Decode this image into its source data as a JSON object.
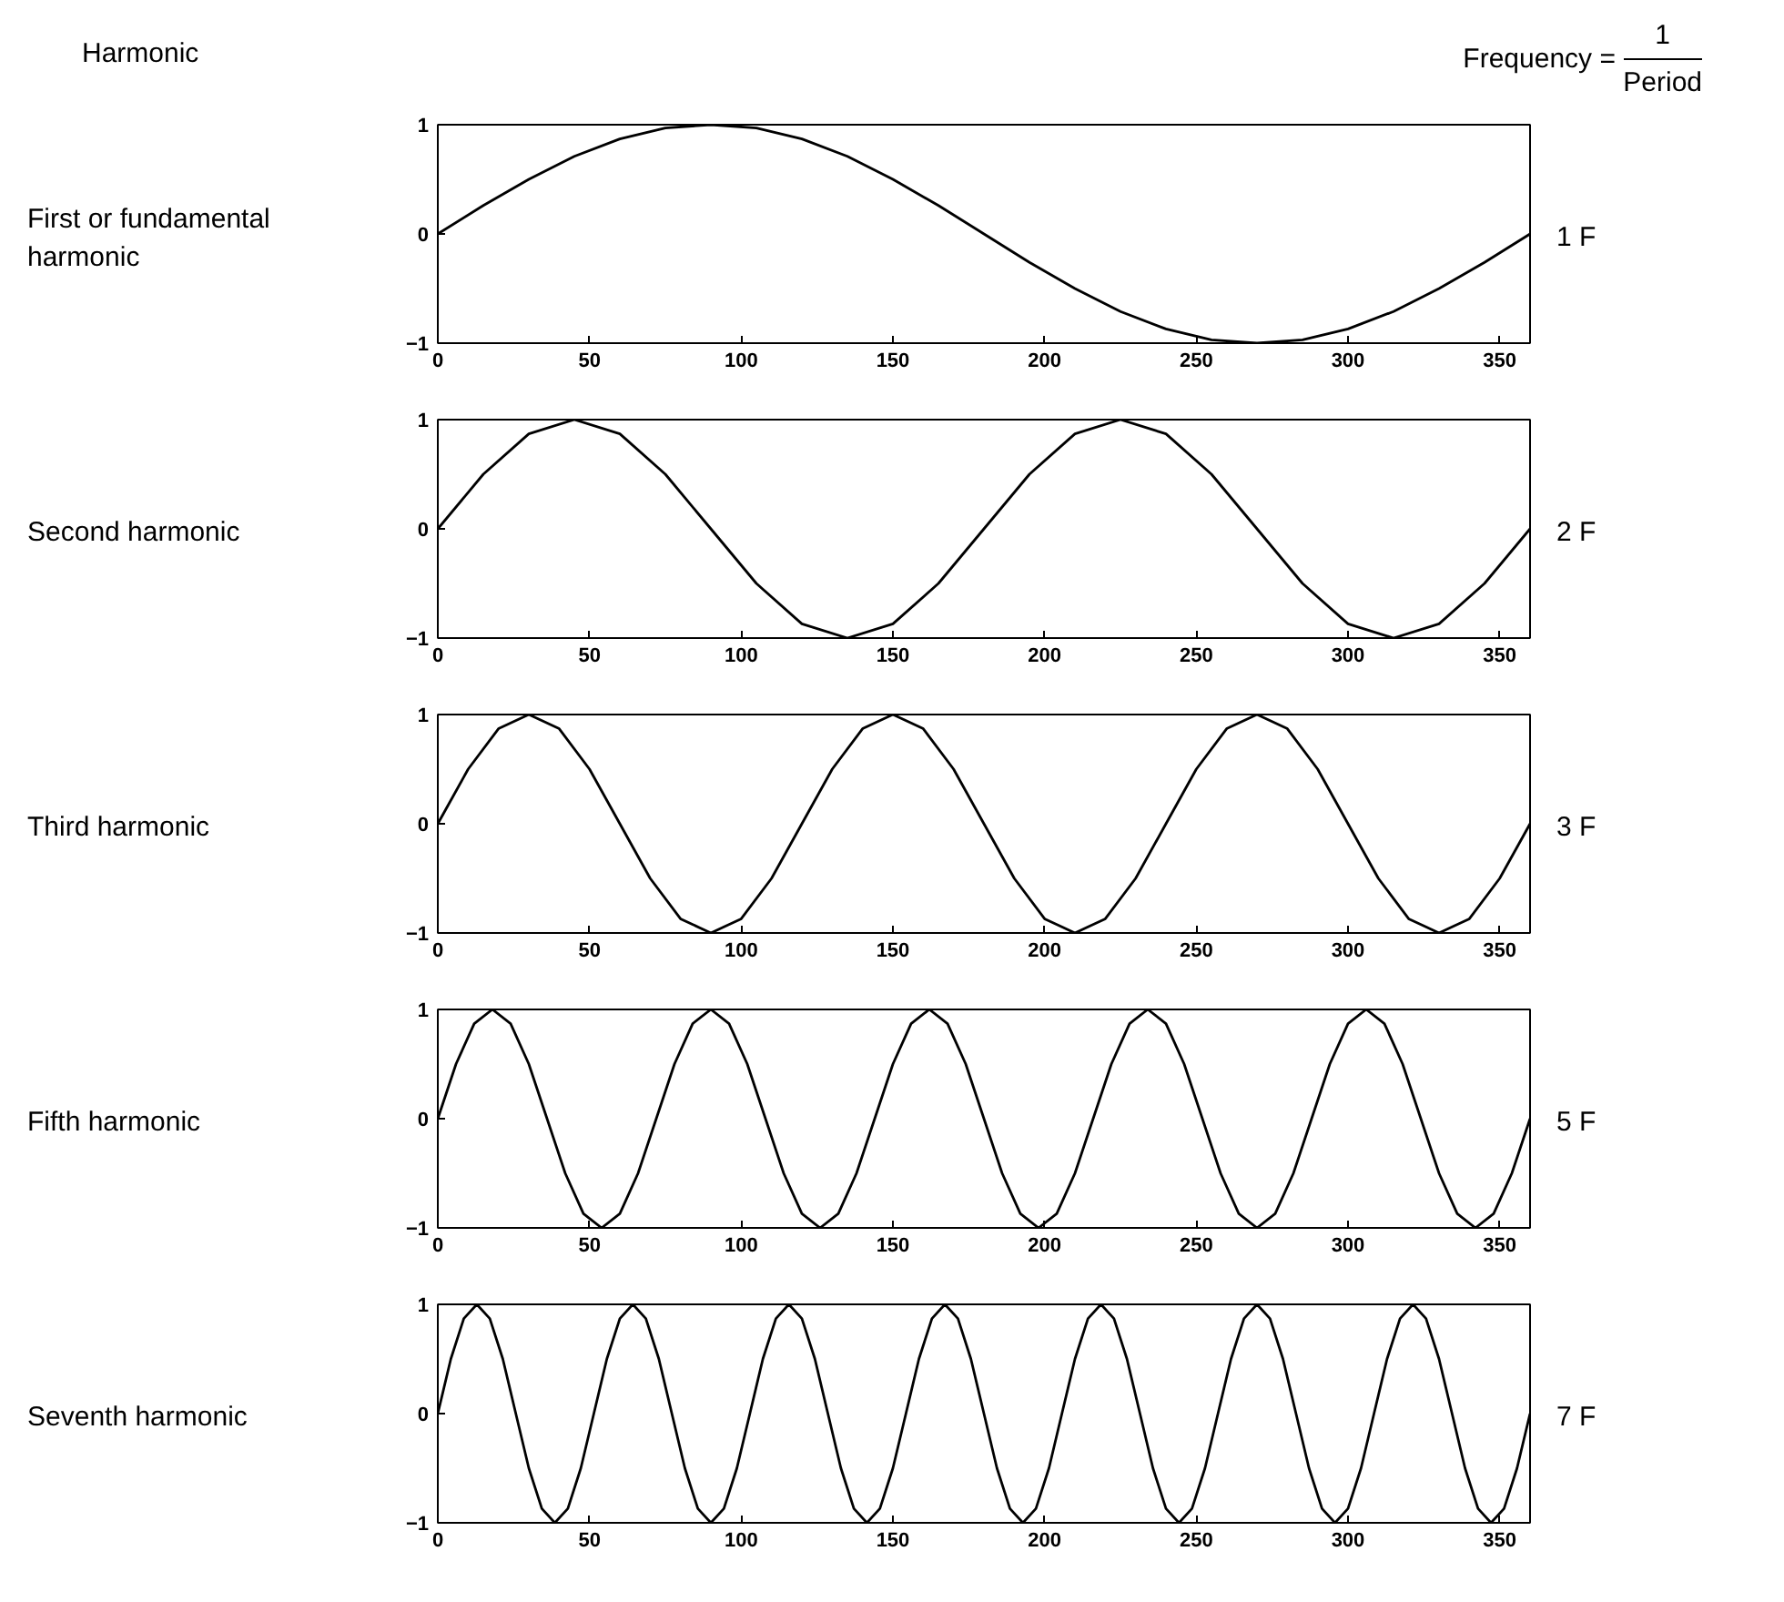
{
  "chart_data": [
    {
      "type": "line",
      "ylabel": "First or fundamental harmonic",
      "y2label": "1 F",
      "annotations": [
        "Harmonic",
        "Frequency =",
        "1",
        "Period"
      ],
      "xlim": [
        0,
        360
      ],
      "ylim": [
        -1,
        1
      ],
      "xticks": [
        0,
        50,
        100,
        150,
        200,
        250,
        300,
        350
      ],
      "yticks": [
        -1,
        0,
        1
      ],
      "grid": false,
      "series": [
        {
          "color": "#000000",
          "x": [
            0,
            15,
            30,
            45,
            60,
            75,
            90,
            105,
            120,
            135,
            150,
            165,
            180,
            195,
            210,
            225,
            240,
            255,
            270,
            285,
            300,
            315,
            330,
            345,
            360
          ],
          "values": [
            0,
            0.26,
            0.5,
            0.71,
            0.87,
            0.97,
            1,
            0.97,
            0.87,
            0.71,
            0.5,
            0.26,
            0,
            -0.26,
            -0.5,
            -0.71,
            -0.87,
            -0.97,
            -1,
            -0.97,
            -0.87,
            -0.71,
            -0.5,
            -0.26,
            0
          ]
        }
      ]
    },
    {
      "type": "line",
      "ylabel": "Second harmonic",
      "y2label": "2 F",
      "xlim": [
        0,
        360
      ],
      "ylim": [
        -1,
        1
      ],
      "xticks": [
        0,
        50,
        100,
        150,
        200,
        250,
        300,
        350
      ],
      "yticks": [
        -1,
        0,
        1
      ],
      "grid": false,
      "series": [
        {
          "color": "#000000",
          "x": [
            0,
            15,
            30,
            45,
            60,
            75,
            90,
            105,
            120,
            135,
            150,
            165,
            180,
            195,
            210,
            225,
            240,
            255,
            270,
            285,
            300,
            315,
            330,
            345,
            360
          ],
          "values": [
            0,
            0.5,
            0.87,
            1,
            0.87,
            0.5,
            0,
            -0.5,
            -0.87,
            -1,
            -0.87,
            -0.5,
            0,
            0.5,
            0.87,
            1,
            0.87,
            0.5,
            0,
            -0.5,
            -0.87,
            -1,
            -0.87,
            -0.5,
            0
          ]
        }
      ]
    },
    {
      "type": "line",
      "ylabel": "Third harmonic",
      "y2label": "3 F",
      "xlim": [
        0,
        360
      ],
      "ylim": [
        -1,
        1
      ],
      "xticks": [
        0,
        50,
        100,
        150,
        200,
        250,
        300,
        350
      ],
      "yticks": [
        -1,
        0,
        1
      ],
      "grid": false,
      "series": [
        {
          "color": "#000000",
          "x": [
            0,
            10,
            20,
            30,
            40,
            50,
            60,
            70,
            80,
            90,
            100,
            110,
            120,
            130,
            140,
            150,
            160,
            170,
            180,
            190,
            200,
            210,
            220,
            230,
            240,
            250,
            260,
            270,
            280,
            290,
            300,
            310,
            320,
            330,
            340,
            350,
            360
          ],
          "values": [
            0,
            0.5,
            0.87,
            1,
            0.87,
            0.5,
            0,
            -0.5,
            -0.87,
            -1,
            -0.87,
            -0.5,
            0,
            0.5,
            0.87,
            1,
            0.87,
            0.5,
            0,
            -0.5,
            -0.87,
            -1,
            -0.87,
            -0.5,
            0,
            0.5,
            0.87,
            1,
            0.87,
            0.5,
            0,
            -0.5,
            -0.87,
            -1,
            -0.87,
            -0.5,
            0
          ]
        }
      ]
    },
    {
      "type": "line",
      "ylabel": "Fifth harmonic",
      "y2label": "5 F",
      "xlim": [
        0,
        360
      ],
      "ylim": [
        -1,
        1
      ],
      "xticks": [
        0,
        50,
        100,
        150,
        200,
        250,
        300,
        350
      ],
      "yticks": [
        -1,
        0,
        1
      ],
      "grid": false,
      "series": [
        {
          "color": "#000000",
          "x": [
            0,
            6,
            12,
            18,
            24,
            30,
            36,
            42,
            48,
            54,
            60,
            66,
            72,
            78,
            84,
            90,
            96,
            102,
            108,
            114,
            120,
            126,
            132,
            138,
            144,
            150,
            156,
            162,
            168,
            174,
            180,
            186,
            192,
            198,
            204,
            210,
            216,
            222,
            228,
            234,
            240,
            246,
            252,
            258,
            264,
            270,
            276,
            282,
            288,
            294,
            300,
            306,
            312,
            318,
            324,
            330,
            336,
            342,
            348,
            354,
            360
          ],
          "values": [
            0,
            0.5,
            0.87,
            1,
            0.87,
            0.5,
            0,
            -0.5,
            -0.87,
            -1,
            -0.87,
            -0.5,
            0,
            0.5,
            0.87,
            1,
            0.87,
            0.5,
            0,
            -0.5,
            -0.87,
            -1,
            -0.87,
            -0.5,
            0,
            0.5,
            0.87,
            1,
            0.87,
            0.5,
            0,
            -0.5,
            -0.87,
            -1,
            -0.87,
            -0.5,
            0,
            0.5,
            0.87,
            1,
            0.87,
            0.5,
            0,
            -0.5,
            -0.87,
            -1,
            -0.87,
            -0.5,
            0,
            0.5,
            0.87,
            1,
            0.87,
            0.5,
            0,
            -0.5,
            -0.87,
            -1,
            -0.87,
            -0.5,
            0
          ]
        }
      ]
    },
    {
      "type": "line",
      "ylabel": "Seventh harmonic",
      "y2label": "7 F",
      "xlim": [
        0,
        360
      ],
      "ylim": [
        -1,
        1
      ],
      "xticks": [
        0,
        50,
        100,
        150,
        200,
        250,
        300,
        350
      ],
      "yticks": [
        -1,
        0,
        1
      ],
      "grid": false,
      "series": [
        {
          "color": "#000000",
          "x": [
            0,
            4.29,
            8.57,
            12.86,
            17.14,
            21.43,
            25.71,
            30,
            34.29,
            38.57,
            42.86,
            47.14,
            51.43,
            55.71,
            60,
            64.29,
            68.57,
            72.86,
            77.14,
            81.43,
            85.71,
            90,
            94.29,
            98.57,
            102.86,
            107.14,
            111.43,
            115.71,
            120,
            124.29,
            128.57,
            132.86,
            137.14,
            141.43,
            145.71,
            150,
            154.29,
            158.57,
            162.86,
            167.14,
            171.43,
            175.71,
            180,
            184.29,
            188.57,
            192.86,
            197.14,
            201.43,
            205.71,
            210,
            214.29,
            218.57,
            222.86,
            227.14,
            231.43,
            235.71,
            240,
            244.29,
            248.57,
            252.86,
            257.14,
            261.43,
            265.71,
            270,
            274.29,
            278.57,
            282.86,
            287.14,
            291.43,
            295.71,
            300,
            304.29,
            308.57,
            312.86,
            317.14,
            321.43,
            325.71,
            330,
            334.29,
            338.57,
            342.86,
            347.14,
            351.43,
            355.71,
            360
          ],
          "values": [
            0,
            0.5,
            0.87,
            1,
            0.87,
            0.5,
            0,
            -0.5,
            -0.87,
            -1,
            -0.87,
            -0.5,
            0,
            0.5,
            0.87,
            1,
            0.87,
            0.5,
            0,
            -0.5,
            -0.87,
            -1,
            -0.87,
            -0.5,
            0,
            0.5,
            0.87,
            1,
            0.87,
            0.5,
            0,
            -0.5,
            -0.87,
            -1,
            -0.87,
            -0.5,
            0,
            0.5,
            0.87,
            1,
            0.87,
            0.5,
            0,
            -0.5,
            -0.87,
            -1,
            -0.87,
            -0.5,
            0,
            0.5,
            0.87,
            1,
            0.87,
            0.5,
            0,
            -0.5,
            -0.87,
            -1,
            -0.87,
            -0.5,
            0,
            0.5,
            0.87,
            1,
            0.87,
            0.5,
            0,
            -0.5,
            -0.87,
            -1,
            -0.87,
            -0.5,
            0,
            0.5,
            0.87,
            1,
            0.87,
            0.5,
            0,
            -0.5,
            -0.87,
            -1,
            -0.87,
            -0.5,
            0
          ]
        }
      ]
    }
  ]
}
